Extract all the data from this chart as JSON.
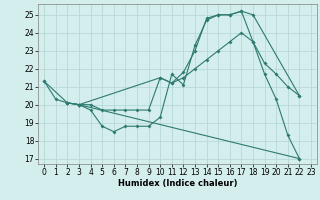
{
  "xlabel": "Humidex (Indice chaleur)",
  "bg_color": "#d4eded",
  "grid_color": "#b8d8d8",
  "line_color": "#2d7a6e",
  "xlim": [
    -0.5,
    23.5
  ],
  "ylim": [
    16.7,
    25.6
  ],
  "xticks": [
    0,
    1,
    2,
    3,
    4,
    5,
    6,
    7,
    8,
    9,
    10,
    11,
    12,
    13,
    14,
    15,
    16,
    17,
    18,
    19,
    20,
    21,
    22,
    23
  ],
  "yticks": [
    17,
    18,
    19,
    20,
    21,
    22,
    23,
    24,
    25
  ],
  "line1_x": [
    0,
    1,
    2,
    3,
    4,
    5,
    6,
    7,
    8,
    9,
    10,
    11,
    12,
    13,
    14,
    15,
    16,
    17,
    18,
    19,
    20,
    21,
    22
  ],
  "line1_y": [
    21.3,
    20.3,
    20.1,
    20.0,
    19.7,
    18.8,
    18.5,
    18.8,
    18.8,
    18.8,
    19.3,
    21.7,
    21.1,
    23.3,
    24.7,
    25.0,
    25.0,
    25.2,
    23.5,
    21.7,
    20.3,
    18.3,
    17.0
  ],
  "line2_x": [
    2,
    3,
    4,
    5,
    6,
    7,
    8,
    9,
    10,
    11,
    12,
    13,
    14,
    15,
    16,
    17,
    18,
    19,
    20,
    21,
    22
  ],
  "line2_y": [
    20.1,
    20.0,
    20.0,
    19.7,
    19.7,
    19.7,
    19.7,
    19.7,
    21.5,
    21.2,
    21.5,
    22.0,
    22.5,
    23.0,
    23.5,
    24.0,
    23.5,
    22.3,
    21.7,
    21.0,
    20.5
  ],
  "line3_x": [
    2,
    3,
    10,
    11,
    12,
    13,
    14,
    15,
    16,
    17,
    18,
    22
  ],
  "line3_y": [
    20.1,
    20.0,
    21.5,
    21.2,
    21.8,
    23.0,
    24.8,
    25.0,
    25.0,
    25.2,
    25.0,
    20.5
  ],
  "line4_x": [
    0,
    2,
    3,
    22
  ],
  "line4_y": [
    21.3,
    20.1,
    20.0,
    17.0
  ]
}
